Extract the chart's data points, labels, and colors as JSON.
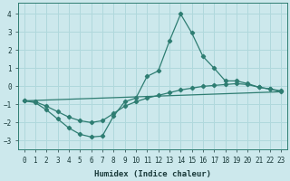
{
  "xlabel": "Humidex (Indice chaleur)",
  "xlim": [
    -0.5,
    23.5
  ],
  "ylim": [
    -3.5,
    4.6
  ],
  "xticks": [
    0,
    1,
    2,
    3,
    4,
    5,
    6,
    7,
    8,
    9,
    10,
    11,
    12,
    13,
    14,
    15,
    16,
    17,
    18,
    19,
    20,
    21,
    22,
    23
  ],
  "yticks": [
    -3,
    -2,
    -1,
    0,
    1,
    2,
    3,
    4
  ],
  "background_color": "#cce8ec",
  "line_color": "#2e7d72",
  "grid_color": "#b0d8dc",
  "line1_x": [
    0,
    1,
    2,
    3,
    4,
    5,
    6,
    7,
    8,
    9,
    10,
    11,
    12,
    13,
    14,
    15,
    16,
    17,
    18,
    19,
    20,
    21,
    22,
    23
  ],
  "line1_y": [
    -0.8,
    -0.9,
    -1.3,
    -1.8,
    -2.3,
    -2.65,
    -2.8,
    -2.75,
    -1.65,
    -0.85,
    -0.65,
    0.55,
    0.85,
    2.5,
    4.0,
    2.95,
    1.65,
    1.0,
    0.3,
    0.3,
    0.15,
    -0.05,
    -0.15,
    -0.3
  ],
  "line2_x": [
    0,
    1,
    2,
    3,
    4,
    5,
    6,
    7,
    8,
    9,
    10,
    11,
    12,
    13,
    14,
    15,
    16,
    17,
    18,
    19,
    20,
    21,
    22,
    23
  ],
  "line2_y": [
    -0.8,
    -0.85,
    -1.1,
    -1.4,
    -1.7,
    -1.9,
    -2.0,
    -1.9,
    -1.5,
    -1.1,
    -0.85,
    -0.65,
    -0.5,
    -0.35,
    -0.2,
    -0.1,
    0.0,
    0.05,
    0.1,
    0.15,
    0.1,
    -0.05,
    -0.15,
    -0.25
  ],
  "line3_x": [
    0,
    23
  ],
  "line3_y": [
    -0.8,
    -0.3
  ]
}
